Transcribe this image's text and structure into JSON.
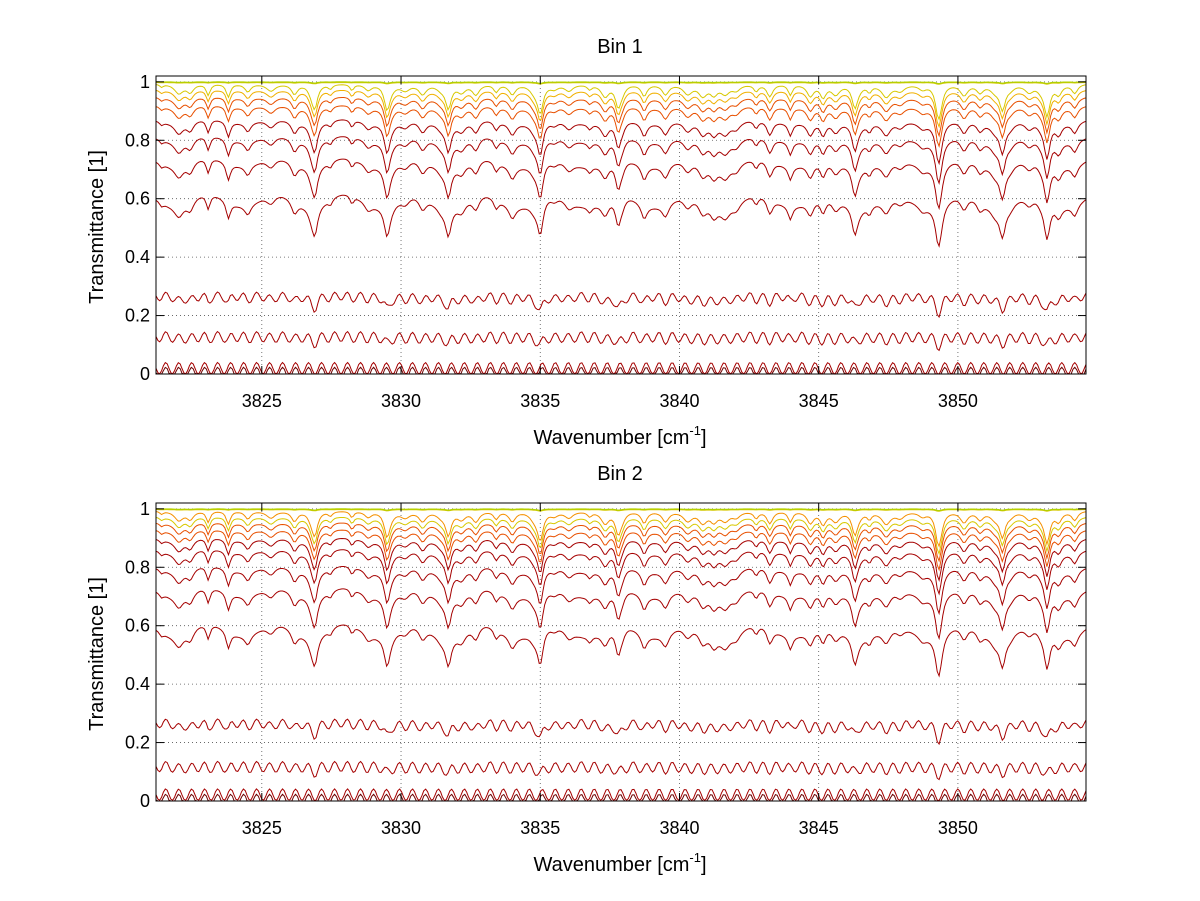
{
  "chart_data": [
    {
      "type": "line",
      "title": "Bin 1",
      "xlabel_main": "Wavenumber [cm",
      "xlabel_sup": "-1",
      "xlabel_tail": "]",
      "ylabel": "Transmittance [1]",
      "xlim": [
        3821.2,
        3854.6
      ],
      "ylim": [
        0,
        1.02
      ],
      "xticks": [
        3825,
        3830,
        3835,
        3840,
        3845,
        3850
      ],
      "yticks": [
        0,
        0.2,
        0.4,
        0.6,
        0.8,
        1
      ],
      "grid": true,
      "series_count": 12,
      "series_baselines": [
        0.003,
        0.02,
        0.13,
        0.27,
        0.6,
        0.73,
        0.81,
        0.87,
        0.92,
        0.95,
        0.975,
        0.995
      ],
      "color_map": [
        "#6b0000",
        "#a00000",
        "#c01000",
        "#d83000",
        "#e85000",
        "#f07000",
        "#f59000",
        "#f0b000",
        "#d8c800",
        "#b0d000"
      ],
      "line_color": "#a50000"
    },
    {
      "type": "line",
      "title": "Bin 2",
      "xlabel_main": "Wavenumber [cm",
      "xlabel_sup": "-1",
      "xlabel_tail": "]",
      "ylabel": "Transmittance [1]",
      "xlim": [
        3821.2,
        3854.6
      ],
      "ylim": [
        0,
        1.02
      ],
      "xticks": [
        3825,
        3830,
        3835,
        3840,
        3845,
        3850
      ],
      "yticks": [
        0,
        0.2,
        0.4,
        0.6,
        0.8,
        1
      ],
      "grid": true,
      "series_count": 13,
      "series_baselines": [
        0.003,
        0.022,
        0.12,
        0.27,
        0.59,
        0.72,
        0.8,
        0.86,
        0.9,
        0.93,
        0.955,
        0.975,
        0.995
      ],
      "color_map": [
        "#6b0000",
        "#a00000",
        "#c01000",
        "#d83000",
        "#e85000",
        "#f07000",
        "#f59000",
        "#f0b000",
        "#d8c800",
        "#b0d000"
      ],
      "line_color": "#a50000"
    }
  ]
}
